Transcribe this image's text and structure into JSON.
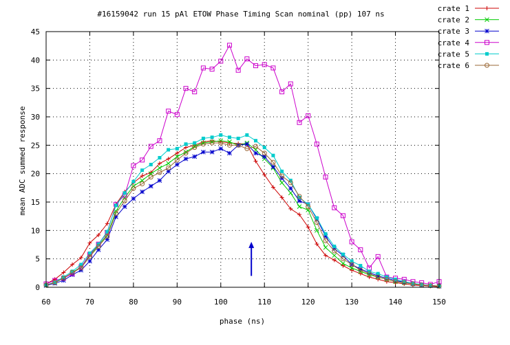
{
  "chart_data": {
    "type": "line",
    "title": "#16159042 run 15 pAl  ETOW Phase Timing Scan nominal (pp) 107 ns",
    "xlabel": "phase (ns)",
    "ylabel": "mean ADC summed response",
    "xlim": [
      60,
      150
    ],
    "ylim": [
      0,
      45
    ],
    "xticks": [
      60,
      70,
      80,
      90,
      100,
      110,
      120,
      130,
      140,
      150
    ],
    "yticks": [
      0,
      5,
      10,
      15,
      20,
      25,
      30,
      35,
      40,
      45
    ],
    "grid": true,
    "legend_position": "right, outside plot",
    "annotation": {
      "type": "arrow",
      "x": 107,
      "y_from": 2,
      "y_to": 8,
      "color": "#0000cc"
    },
    "x": [
      60,
      62,
      64,
      66,
      68,
      70,
      72,
      74,
      76,
      78,
      80,
      82,
      84,
      86,
      88,
      90,
      92,
      94,
      96,
      98,
      100,
      102,
      104,
      106,
      108,
      110,
      112,
      114,
      116,
      118,
      120,
      122,
      124,
      126,
      128,
      130,
      132,
      134,
      136,
      138,
      140,
      142,
      144,
      146,
      148,
      150
    ],
    "series": [
      {
        "name": "crate 1",
        "color": "#cc0000",
        "marker": "plus",
        "values": [
          0.6,
          1.4,
          2.6,
          4.0,
          5.2,
          7.8,
          9.2,
          11.2,
          14.6,
          16.8,
          18.4,
          19.6,
          20.2,
          21.8,
          22.6,
          23.6,
          24.6,
          25.0,
          25.6,
          25.8,
          25.6,
          25.4,
          25.3,
          25.2,
          22.2,
          19.8,
          17.6,
          15.8,
          13.8,
          12.8,
          10.6,
          7.6,
          5.6,
          4.8,
          3.8,
          3.0,
          2.4,
          1.8,
          1.4,
          1.0,
          0.8,
          0.6,
          0.4,
          0.3,
          0.2,
          0.1
        ]
      },
      {
        "name": "crate 2",
        "color": "#00cc00",
        "marker": "cross",
        "values": [
          0.4,
          0.9,
          1.6,
          2.6,
          3.6,
          5.6,
          7.4,
          9.2,
          13.4,
          15.8,
          17.8,
          18.8,
          20.0,
          21.0,
          21.8,
          23.0,
          23.8,
          24.8,
          25.4,
          25.6,
          25.8,
          25.6,
          25.0,
          25.4,
          24.2,
          22.6,
          21.0,
          18.4,
          16.6,
          14.2,
          13.6,
          10.0,
          7.0,
          5.6,
          4.2,
          3.4,
          2.8,
          2.2,
          1.8,
          1.4,
          1.0,
          0.8,
          0.6,
          0.4,
          0.3,
          0.2
        ]
      },
      {
        "name": "crate 3",
        "color": "#0000cc",
        "marker": "star",
        "values": [
          0.3,
          0.7,
          1.2,
          2.2,
          3.0,
          4.6,
          6.6,
          8.4,
          12.4,
          14.2,
          15.6,
          16.8,
          17.8,
          18.8,
          20.4,
          21.6,
          22.6,
          23.0,
          23.8,
          23.8,
          24.4,
          23.6,
          25.0,
          25.2,
          23.6,
          23.0,
          21.2,
          19.2,
          17.4,
          15.2,
          14.6,
          12.0,
          9.0,
          6.8,
          5.6,
          4.0,
          3.2,
          2.6,
          2.0,
          1.6,
          1.2,
          0.9,
          0.6,
          0.4,
          0.3,
          0.2
        ]
      },
      {
        "name": "crate 4",
        "color": "#cc00cc",
        "marker": "square",
        "values": [
          0.6,
          1.2,
          1.6,
          2.4,
          3.6,
          5.8,
          7.6,
          9.6,
          14.6,
          16.2,
          21.4,
          22.4,
          24.8,
          25.8,
          31.0,
          30.4,
          35.0,
          34.4,
          38.6,
          38.4,
          39.8,
          42.6,
          38.2,
          40.2,
          39.0,
          39.2,
          38.6,
          34.4,
          35.8,
          29.0,
          30.2,
          25.2,
          19.4,
          14.0,
          12.6,
          8.0,
          6.6,
          3.4,
          5.4,
          1.8,
          1.6,
          1.4,
          1.0,
          0.8,
          0.5,
          1.0
        ]
      },
      {
        "name": "crate 5",
        "color": "#00cccc",
        "marker": "filled-square",
        "values": [
          0.4,
          0.9,
          1.8,
          2.8,
          4.0,
          6.0,
          7.6,
          9.8,
          14.4,
          16.6,
          18.6,
          20.6,
          21.6,
          22.8,
          24.2,
          24.4,
          25.2,
          25.4,
          26.2,
          26.4,
          26.8,
          26.4,
          26.2,
          26.8,
          25.8,
          24.6,
          23.2,
          20.4,
          18.8,
          15.8,
          14.6,
          12.2,
          9.4,
          7.2,
          5.8,
          4.6,
          3.8,
          2.8,
          2.4,
          1.8,
          1.4,
          1.0,
          0.7,
          0.5,
          0.3,
          0.2
        ]
      },
      {
        "name": "crate 6",
        "color": "#996633",
        "marker": "circle",
        "values": [
          0.4,
          0.8,
          1.6,
          2.6,
          3.4,
          5.4,
          7.2,
          9.0,
          13.0,
          15.2,
          17.4,
          18.2,
          19.4,
          20.2,
          21.0,
          22.4,
          23.6,
          24.6,
          25.2,
          25.4,
          25.4,
          25.0,
          25.0,
          24.4,
          24.8,
          23.6,
          22.0,
          19.6,
          18.4,
          16.0,
          14.2,
          11.4,
          8.2,
          6.4,
          5.0,
          4.0,
          3.0,
          2.4,
          1.8,
          1.4,
          1.0,
          0.8,
          0.6,
          0.4,
          0.3,
          0.2
        ]
      }
    ]
  }
}
